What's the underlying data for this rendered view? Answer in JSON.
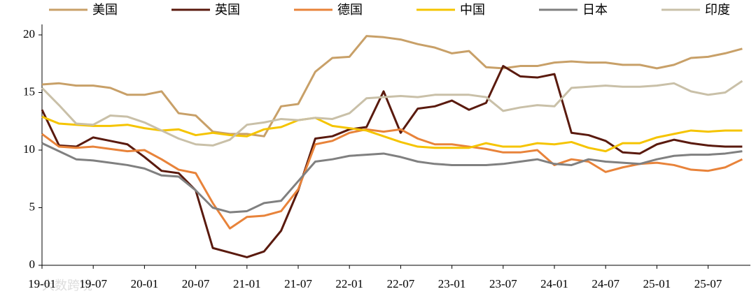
{
  "chart_data": {
    "type": "line",
    "watermark": "大数跨境",
    "categories": [
      "19-01",
      null,
      null,
      "19-07",
      null,
      null,
      "20-01",
      null,
      null,
      "20-07",
      null,
      null,
      "21-01",
      null,
      null,
      "21-07",
      null,
      null,
      "22-01",
      null,
      null,
      "22-07",
      null,
      null,
      "23-01",
      null,
      null,
      "23-07",
      null,
      null,
      "24-01",
      null,
      null,
      "24-07",
      null,
      null,
      "25-01",
      null,
      null,
      "25-07",
      null,
      null
    ],
    "ylim": [
      0,
      20
    ],
    "yticks": [
      0,
      5,
      10,
      15,
      20
    ],
    "series": [
      {
        "name": "美国",
        "color": "#c8a068",
        "values": [
          15.7,
          15.8,
          15.6,
          15.6,
          15.4,
          14.8,
          14.8,
          15.1,
          13.2,
          13.0,
          11.6,
          11.4,
          11.4,
          11.2,
          13.8,
          14,
          16.8,
          18,
          18.1,
          19.9,
          19.8,
          19.6,
          19.2,
          18.9,
          18.4,
          18.6,
          17.2,
          17.1,
          17.3,
          17.3,
          17.6,
          17.7,
          17.6,
          17.6,
          17.4,
          17.4,
          17.1,
          17.4,
          18,
          18.1,
          18.4,
          18.8
        ]
      },
      {
        "name": "英国",
        "color": "#5a1a0e",
        "values": [
          13.5,
          10.4,
          10.3,
          11.1,
          10.8,
          10.5,
          9.4,
          8.2,
          8.0,
          6.5,
          1.5,
          1.1,
          0.7,
          1.2,
          3.0,
          6.5,
          11,
          11.2,
          11.8,
          12,
          15.1,
          11.5,
          13.6,
          13.8,
          14.3,
          13.5,
          14.1,
          17.3,
          16.4,
          16.3,
          16.6,
          11.5,
          11.3,
          10.8,
          9.8,
          9.7,
          10.5,
          10.9,
          10.6,
          10.4,
          10.3,
          10.3
        ]
      },
      {
        "name": "德国",
        "color": "#e8833a",
        "values": [
          11.4,
          10.3,
          10.2,
          10.3,
          10.1,
          9.9,
          10.0,
          9.2,
          8.3,
          8.0,
          5.4,
          3.2,
          4.2,
          4.3,
          4.7,
          6.6,
          10.5,
          10.8,
          11.5,
          11.8,
          11.6,
          11.8,
          11.0,
          10.5,
          10.5,
          10.3,
          10.1,
          9.8,
          9.8,
          10.0,
          8.7,
          9.2,
          9.0,
          8.1,
          8.5,
          8.8,
          8.9,
          8.7,
          8.3,
          8.2,
          8.5,
          9.2
        ]
      },
      {
        "name": "中国",
        "color": "#f5c400",
        "values": [
          12.9,
          12.3,
          12.2,
          12.1,
          12.1,
          12.2,
          11.9,
          11.7,
          11.8,
          11.3,
          11.5,
          11.3,
          11.2,
          11.8,
          12.0,
          12.6,
          12.8,
          12.1,
          11.9,
          11.7,
          11.2,
          10.7,
          10.3,
          10.2,
          10.2,
          10.2,
          10.6,
          10.3,
          10.3,
          10.6,
          10.5,
          10.7,
          10.2,
          9.9,
          10.6,
          10.6,
          11.1,
          11.4,
          11.7,
          11.6,
          11.7,
          11.7
        ]
      },
      {
        "name": "日本",
        "color": "#808080",
        "values": [
          10.6,
          9.9,
          9.2,
          9.1,
          8.9,
          8.7,
          8.4,
          7.8,
          7.7,
          6.5,
          5.0,
          4.6,
          4.7,
          5.4,
          5.6,
          7.3,
          9.0,
          9.2,
          9.5,
          9.6,
          9.7,
          9.4,
          9.0,
          8.8,
          8.7,
          8.7,
          8.7,
          8.8,
          9.0,
          9.2,
          8.8,
          8.7,
          9.2,
          9.0,
          8.9,
          8.8,
          9.2,
          9.5,
          9.6,
          9.6,
          9.7,
          9.9
        ]
      },
      {
        "name": "印度",
        "color": "#c9c0a8",
        "values": [
          15.4,
          13.9,
          12.3,
          12.2,
          13.0,
          12.9,
          12.4,
          11.7,
          11.0,
          10.5,
          10.4,
          10.9,
          12.2,
          12.4,
          12.7,
          12.6,
          12.8,
          12.7,
          13.2,
          14.5,
          14.6,
          14.7,
          14.6,
          14.8,
          14.8,
          14.8,
          14.6,
          13.4,
          13.7,
          13.9,
          13.8,
          15.4,
          15.5,
          15.6,
          15.5,
          15.5,
          15.6,
          15.8,
          15.1,
          14.8,
          15.0,
          16.0
        ]
      }
    ]
  }
}
